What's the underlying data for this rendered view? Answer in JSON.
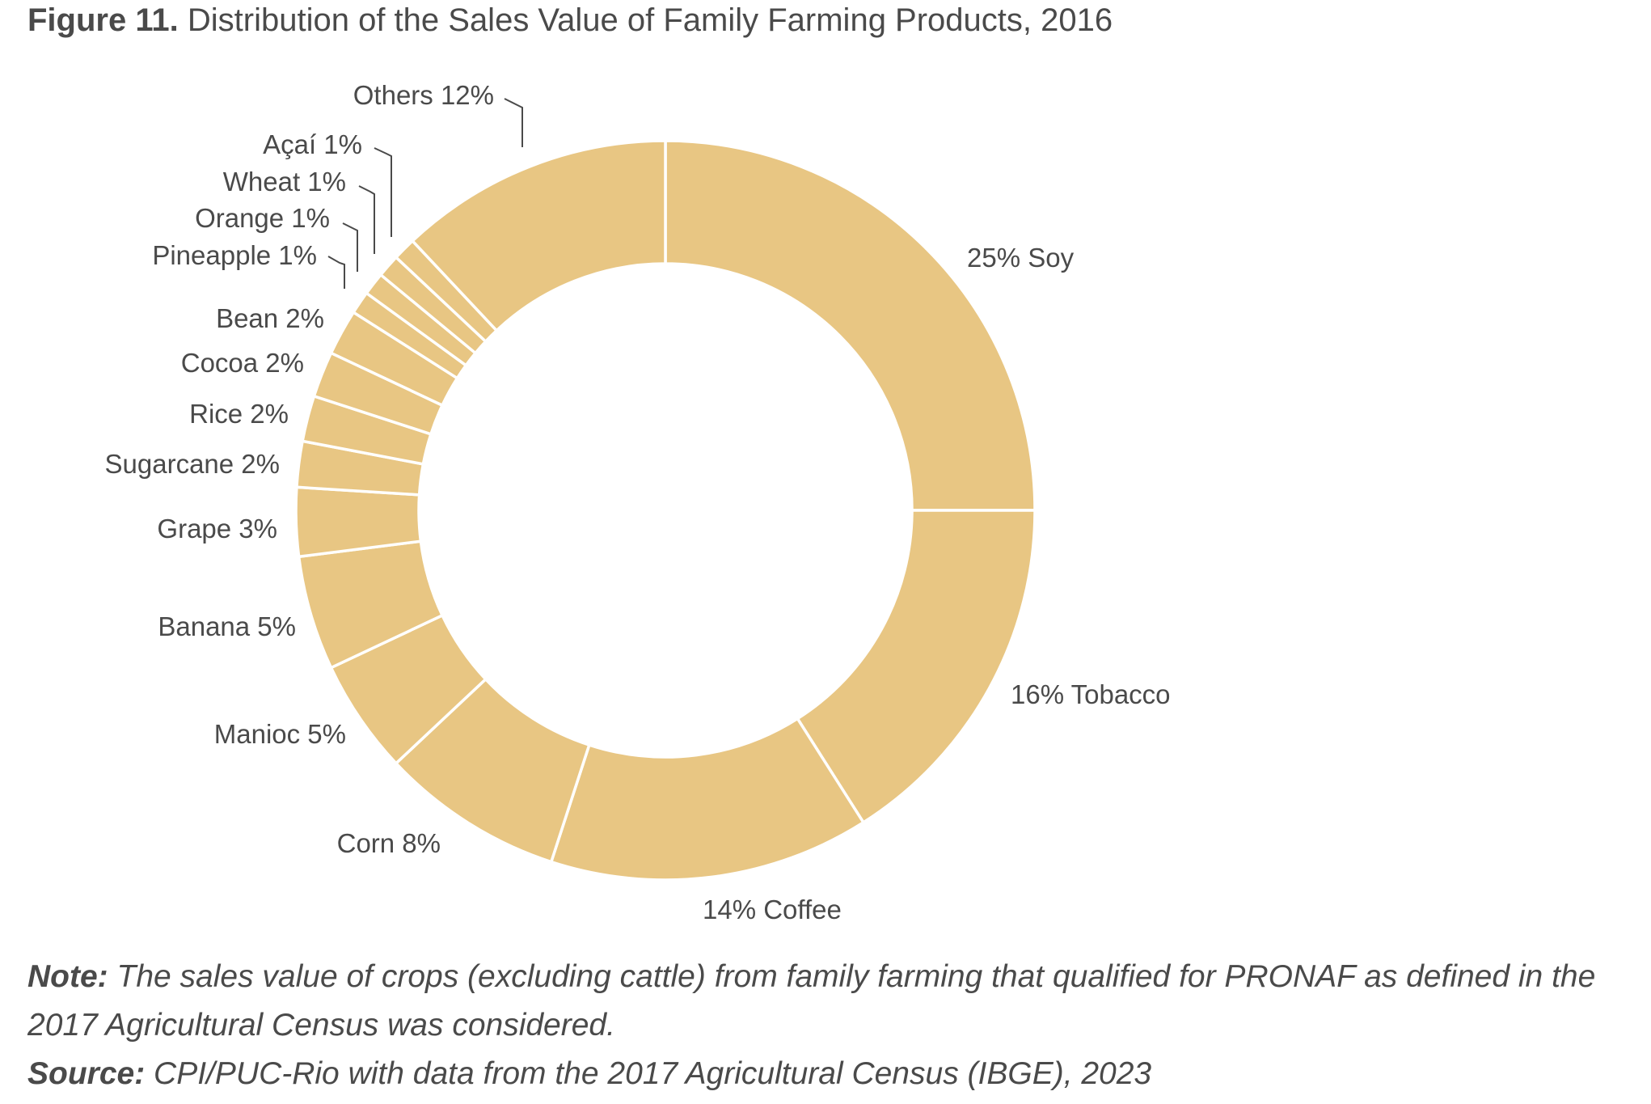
{
  "figure": {
    "number": "Figure 11.",
    "title": "Distribution of the Sales Value of Family Farming Products, 2016"
  },
  "chart_data": {
    "type": "pie",
    "variant": "donut",
    "unit": "%",
    "color": "#e8c683",
    "separator_color": "#ffffff",
    "slices": [
      {
        "name": "Soy",
        "value": 25,
        "label": "25% Soy"
      },
      {
        "name": "Tobacco",
        "value": 16,
        "label": "16% Tobacco"
      },
      {
        "name": "Coffee",
        "value": 14,
        "label": "14% Coffee"
      },
      {
        "name": "Corn",
        "value": 8,
        "label": "Corn 8%"
      },
      {
        "name": "Manioc",
        "value": 5,
        "label": "Manioc 5%"
      },
      {
        "name": "Banana",
        "value": 5,
        "label": "Banana 5%"
      },
      {
        "name": "Grape",
        "value": 3,
        "label": "Grape 3%"
      },
      {
        "name": "Sugarcane",
        "value": 2,
        "label": "Sugarcane 2%"
      },
      {
        "name": "Rice",
        "value": 2,
        "label": "Rice 2%"
      },
      {
        "name": "Cocoa",
        "value": 2,
        "label": "Cocoa 2%"
      },
      {
        "name": "Bean",
        "value": 2,
        "label": "Bean 2%"
      },
      {
        "name": "Pineapple",
        "value": 1,
        "label": "Pineapple 1%"
      },
      {
        "name": "Orange",
        "value": 1,
        "label": "Orange 1%"
      },
      {
        "name": "Wheat",
        "value": 1,
        "label": "Wheat 1%"
      },
      {
        "name": "Açaí",
        "value": 1,
        "label": "Açaí 1%"
      },
      {
        "name": "Others",
        "value": 12,
        "label": "Others 12%"
      }
    ]
  },
  "notes": {
    "note_label": "Note:",
    "note_text": "The sales value of crops (excluding cattle) from family farming that qualified for PRONAF as defined in the 2017 Agricultural Census was considered.",
    "source_label": "Source:",
    "source_text": "CPI/PUC-Rio with data from the 2017 Agricultural Census (IBGE), 2023"
  }
}
